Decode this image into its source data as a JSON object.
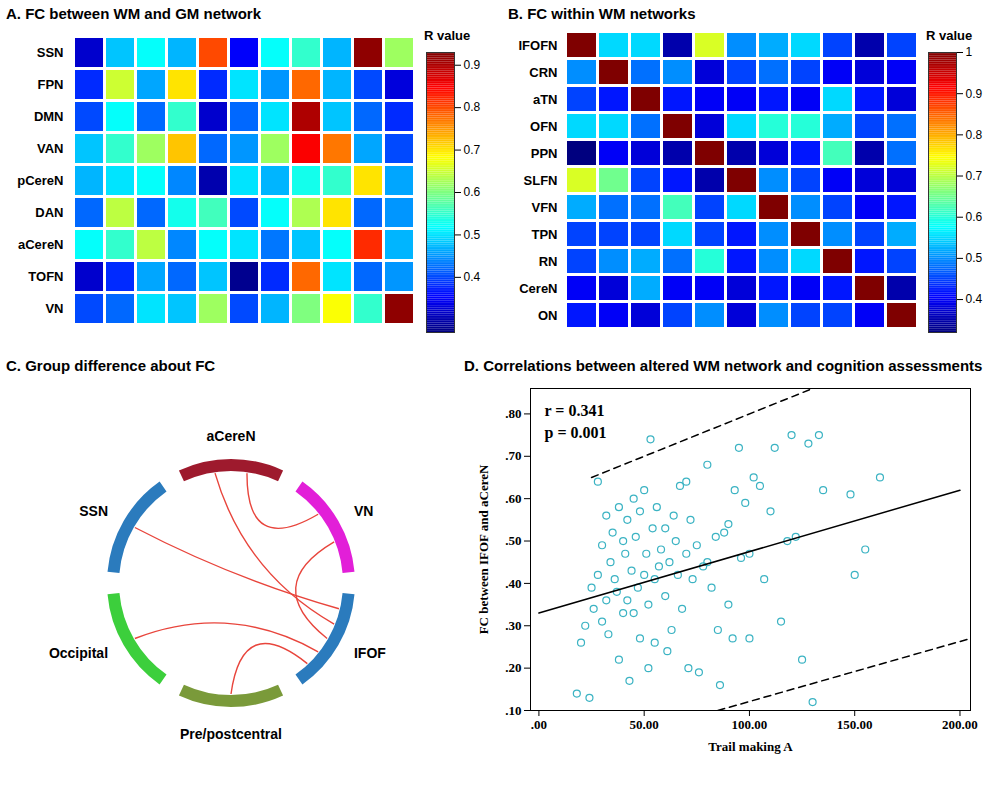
{
  "chart_data": [
    {
      "type": "heatmap",
      "title": "A. FC between WM and GM network",
      "rows": [
        "SSN",
        "FPN",
        "DMN",
        "VAN",
        "pCereN",
        "DAN",
        "aCereN",
        "TOFN",
        "VN"
      ],
      "columns": [
        null,
        null,
        null,
        null,
        null,
        null,
        null,
        null,
        null,
        null,
        null
      ],
      "cells": [
        [
          0.32,
          0.48,
          0.52,
          0.47,
          0.8,
          0.35,
          0.52,
          0.55,
          0.47,
          0.92,
          0.62
        ],
        [
          0.38,
          0.65,
          0.46,
          0.7,
          0.38,
          0.5,
          0.45,
          0.78,
          0.47,
          0.4,
          0.33
        ],
        [
          0.4,
          0.52,
          0.42,
          0.55,
          0.32,
          0.42,
          0.5,
          0.9,
          0.48,
          0.42,
          0.38
        ],
        [
          0.48,
          0.55,
          0.62,
          0.72,
          0.42,
          0.45,
          0.62,
          0.85,
          0.77,
          0.46,
          0.4
        ],
        [
          0.47,
          0.5,
          0.52,
          0.44,
          0.3,
          0.5,
          0.47,
          0.53,
          0.55,
          0.7,
          0.46
        ],
        [
          0.42,
          0.64,
          0.42,
          0.53,
          0.56,
          0.4,
          0.52,
          0.63,
          0.7,
          0.42,
          0.45
        ],
        [
          0.52,
          0.55,
          0.64,
          0.44,
          0.52,
          0.5,
          0.43,
          0.48,
          0.52,
          0.82,
          0.47
        ],
        [
          0.32,
          0.38,
          0.46,
          0.42,
          0.48,
          0.28,
          0.38,
          0.78,
          0.5,
          0.42,
          0.45
        ],
        [
          0.4,
          0.42,
          0.5,
          0.48,
          0.62,
          0.4,
          0.47,
          0.6,
          0.68,
          0.55,
          0.92
        ]
      ],
      "colorbar": {
        "label": "R value",
        "lim": [
          0.27,
          0.93
        ],
        "ticks": [
          0.4,
          0.5,
          0.6,
          0.7,
          0.8,
          0.9
        ]
      }
    },
    {
      "type": "heatmap",
      "title": "B. FC within WM networks",
      "rows": [
        "IFOFN",
        "CRN",
        "aTN",
        "OFN",
        "PPN",
        "SLFN",
        "VFN",
        "TPN",
        "RN",
        "CereN",
        "ON"
      ],
      "columns": [
        null,
        null,
        null,
        null,
        null,
        null,
        null,
        null,
        null,
        null,
        null
      ],
      "cells": [
        [
          1,
          0.55,
          0.55,
          0.35,
          0.72,
          0.5,
          0.52,
          0.55,
          0.45,
          0.35,
          0.45
        ],
        [
          0.5,
          1,
          0.48,
          0.5,
          0.38,
          0.45,
          0.48,
          0.45,
          0.4,
          0.38,
          0.4
        ],
        [
          0.45,
          0.42,
          1,
          0.42,
          0.4,
          0.4,
          0.42,
          0.4,
          0.55,
          0.42,
          0.38
        ],
        [
          0.55,
          0.55,
          0.48,
          1,
          0.38,
          0.55,
          0.6,
          0.6,
          0.52,
          0.45,
          0.48
        ],
        [
          0.32,
          0.4,
          0.38,
          0.35,
          1,
          0.35,
          0.38,
          0.42,
          0.62,
          0.35,
          0.48
        ],
        [
          0.72,
          0.65,
          0.45,
          0.42,
          0.35,
          1,
          0.5,
          0.45,
          0.4,
          0.38,
          0.38
        ],
        [
          0.52,
          0.48,
          0.48,
          0.62,
          0.45,
          0.55,
          1,
          0.5,
          0.45,
          0.4,
          0.42
        ],
        [
          0.45,
          0.45,
          0.45,
          0.55,
          0.45,
          0.42,
          0.5,
          1,
          0.5,
          0.45,
          0.52
        ],
        [
          0.45,
          0.5,
          0.52,
          0.48,
          0.6,
          0.42,
          0.5,
          0.55,
          1,
          0.42,
          0.45
        ],
        [
          0.4,
          0.38,
          0.52,
          0.4,
          0.4,
          0.38,
          0.42,
          0.4,
          0.42,
          1,
          0.35
        ],
        [
          0.42,
          0.4,
          0.38,
          0.45,
          0.5,
          0.38,
          0.5,
          0.45,
          0.45,
          0.4,
          1
        ]
      ],
      "colorbar": {
        "label": "R value",
        "lim": [
          0.32,
          1
        ],
        "ticks": [
          0.4,
          0.5,
          0.6,
          0.7,
          0.8,
          0.9,
          1
        ]
      }
    },
    {
      "type": "chord",
      "title": "C. Group difference about FC",
      "nodes": [
        {
          "name": "aCereN",
          "color": "#9e1a2d"
        },
        {
          "name": "VN",
          "color": "#e21fd8"
        },
        {
          "name": "IFOF",
          "color": "#2b7bbd"
        },
        {
          "name": "Pre/postcentral",
          "color": "#7a9a3a"
        },
        {
          "name": "Occipital",
          "color": "#3ccf3c"
        },
        {
          "name": "SSN",
          "color": "#2b7bbd"
        }
      ],
      "links": [
        [
          "SSN",
          "IFOF"
        ],
        [
          "aCereN",
          "IFOF"
        ],
        [
          "aCereN",
          "VN"
        ],
        [
          "VN",
          "IFOF"
        ],
        [
          "Occipital",
          "IFOF"
        ],
        [
          "Pre/postcentral",
          "IFOF"
        ]
      ],
      "color": "#e8453c"
    },
    {
      "type": "scatter",
      "title": "D. Correlations between altered WM network and cognition assessments",
      "x_label": "Trail making A",
      "y_label": "FC between IFOF and aCereN",
      "color": "#3bb3c3",
      "marker": "circle",
      "x": [
        18,
        20,
        22,
        24,
        25,
        26,
        28,
        28,
        30,
        30,
        32,
        32,
        33,
        34,
        35,
        36,
        37,
        38,
        38,
        40,
        40,
        41,
        42,
        42,
        43,
        44,
        45,
        45,
        46,
        47,
        48,
        48,
        50,
        50,
        51,
        52,
        52,
        53,
        54,
        55,
        55,
        56,
        57,
        58,
        60,
        60,
        61,
        62,
        63,
        64,
        65,
        66,
        67,
        68,
        70,
        70,
        71,
        72,
        73,
        75,
        76,
        78,
        80,
        80,
        82,
        84,
        85,
        86,
        88,
        90,
        90,
        92,
        93,
        95,
        96,
        98,
        100,
        100,
        102,
        105,
        107,
        110,
        112,
        115,
        118,
        120,
        122,
        125,
        128,
        130,
        133,
        135,
        148,
        150,
        155,
        162
      ],
      "y": [
        0.14,
        0.26,
        0.3,
        0.13,
        0.39,
        0.34,
        0.64,
        0.42,
        0.31,
        0.49,
        0.36,
        0.56,
        0.28,
        0.45,
        0.52,
        0.41,
        0.38,
        0.58,
        0.22,
        0.33,
        0.5,
        0.47,
        0.55,
        0.36,
        0.17,
        0.43,
        0.6,
        0.33,
        0.51,
        0.39,
        0.57,
        0.27,
        0.42,
        0.62,
        0.47,
        0.2,
        0.35,
        0.74,
        0.53,
        0.41,
        0.26,
        0.58,
        0.44,
        0.48,
        0.53,
        0.37,
        0.24,
        0.45,
        0.29,
        0.56,
        0.5,
        0.42,
        0.63,
        0.34,
        0.47,
        0.64,
        0.2,
        0.55,
        0.41,
        0.49,
        0.19,
        0.44,
        0.45,
        0.68,
        0.39,
        0.51,
        0.29,
        0.16,
        0.52,
        0.54,
        0.35,
        0.27,
        0.62,
        0.72,
        0.46,
        0.59,
        0.47,
        0.27,
        0.65,
        0.63,
        0.41,
        0.57,
        0.72,
        0.31,
        0.5,
        0.75,
        0.51,
        0.22,
        0.73,
        0.12,
        0.75,
        0.62,
        0.61,
        0.42,
        0.48,
        0.65
      ],
      "lines": [
        {
          "x": [
            0,
            200
          ],
          "y": [
            0.33,
            0.62
          ],
          "color": "#000000",
          "line_style": "solid"
        },
        {
          "x": [
            25,
            130
          ],
          "y": [
            0.65,
            0.86
          ],
          "color": "#000000",
          "line_style": "dashed"
        },
        {
          "x": [
            85,
            205
          ],
          "y": [
            0.1,
            0.27
          ],
          "color": "#000000",
          "line_style": "dashed"
        }
      ],
      "annotations": [
        "r = 0.341",
        "p = 0.001"
      ],
      "xlim": [
        -4,
        205
      ],
      "ylim": [
        0.1,
        0.86
      ],
      "xticks": [
        {
          "value": 0,
          "label": ".00"
        },
        {
          "value": 50,
          "label": "50.00"
        },
        {
          "value": 100,
          "label": "100.00"
        },
        {
          "value": 150,
          "label": "150.00"
        },
        {
          "value": 200,
          "label": "200.00"
        }
      ],
      "yticks": [
        {
          "value": 0.1,
          "label": ".10"
        },
        {
          "value": 0.2,
          "label": ".20"
        },
        {
          "value": 0.3,
          "label": ".30"
        },
        {
          "value": 0.4,
          "label": ".40"
        },
        {
          "value": 0.5,
          "label": ".50"
        },
        {
          "value": 0.6,
          "label": ".60"
        },
        {
          "value": 0.7,
          "label": ".70"
        },
        {
          "value": 0.8,
          "label": ".80"
        }
      ]
    }
  ]
}
